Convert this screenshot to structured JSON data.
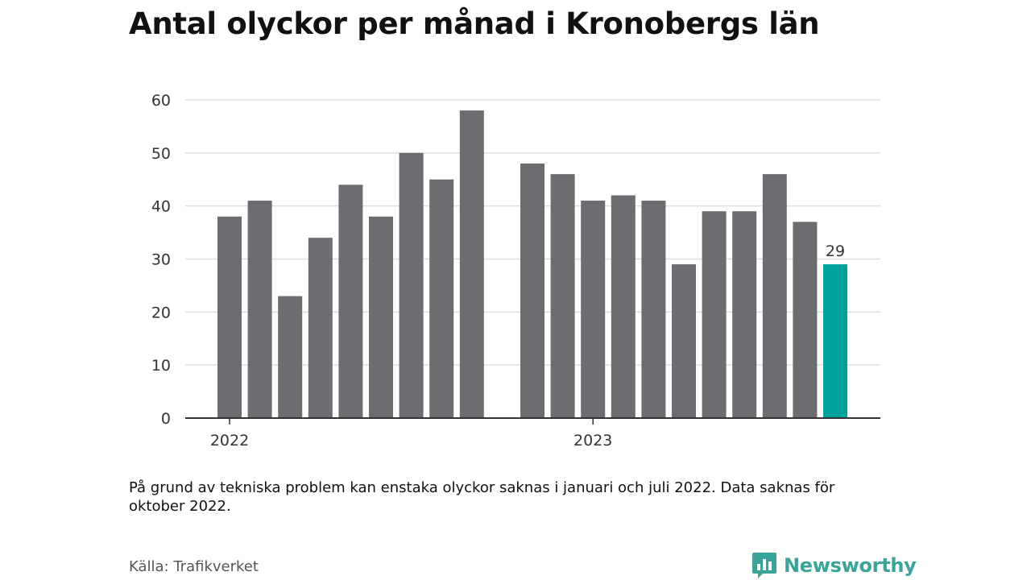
{
  "title": "Antal olyckor per månad i Kronobergs län",
  "note": "På grund av tekniska problem kan enstaka olyckor saknas i januari och juli 2022. Data saknas för oktober 2022.",
  "source": "Källa: Trafikverket",
  "brand": {
    "name": "Newsworthy",
    "icon": "newsworthy-logo-icon",
    "color": "#3aa39a"
  },
  "colors": {
    "bar": "#6d6c71",
    "highlight": "#00a39a",
    "grid": "#dddddd",
    "axis": "#333333"
  },
  "chart_data": {
    "type": "bar",
    "x_tick_labels": [
      "2022",
      "2023"
    ],
    "yticks": [
      0,
      10,
      20,
      30,
      40,
      50,
      60
    ],
    "ylim": [
      0,
      60
    ],
    "grid": true,
    "legend": "none",
    "series": [
      {
        "values": [
          {
            "x": "2022-01",
            "y": 38
          },
          {
            "x": "2022-02",
            "y": 41
          },
          {
            "x": "2022-03",
            "y": 23
          },
          {
            "x": "2022-04",
            "y": 34
          },
          {
            "x": "2022-05",
            "y": 44
          },
          {
            "x": "2022-06",
            "y": 38
          },
          {
            "x": "2022-07",
            "y": 50
          },
          {
            "x": "2022-08",
            "y": 45
          },
          {
            "x": "2022-09",
            "y": 58
          },
          {
            "x": "2022-10",
            "y": null
          },
          {
            "x": "2022-11",
            "y": 48
          },
          {
            "x": "2022-12",
            "y": 46
          },
          {
            "x": "2023-01",
            "y": 41
          },
          {
            "x": "2023-02",
            "y": 42
          },
          {
            "x": "2023-03",
            "y": 41
          },
          {
            "x": "2023-04",
            "y": 29
          },
          {
            "x": "2023-05",
            "y": 39
          },
          {
            "x": "2023-06",
            "y": 39
          },
          {
            "x": "2023-07",
            "y": 46
          },
          {
            "x": "2023-08",
            "y": 37
          },
          {
            "x": "2023-09",
            "y": 29
          }
        ]
      }
    ],
    "highlight": {
      "x": "2023-09",
      "label": "29"
    }
  }
}
